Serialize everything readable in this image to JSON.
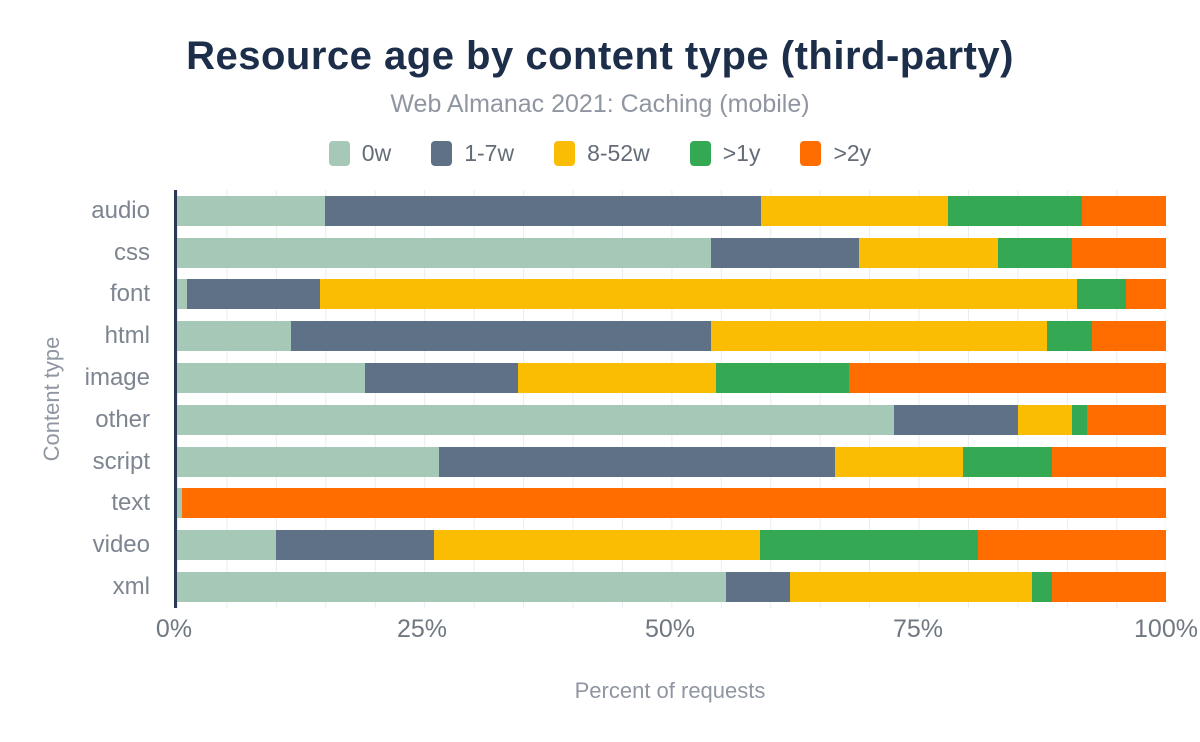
{
  "header": {
    "title": "Resource age by content type (third-party)",
    "subtitle": "Web Almanac 2021: Caching (mobile)"
  },
  "chart_data": {
    "type": "bar",
    "orientation": "horizontal",
    "stacked": true,
    "title": "Resource age by content type (third-party)",
    "subtitle": "Web Almanac 2021: Caching (mobile)",
    "xlabel": "Percent of requests",
    "ylabel": "Content type",
    "xlim": [
      0,
      100
    ],
    "x_ticks": [
      "0%",
      "25%",
      "50%",
      "75%",
      "100%"
    ],
    "x_tick_positions": [
      0,
      25,
      50,
      75,
      100
    ],
    "gridline_step_percent": 5,
    "grid": true,
    "legend_position": "top",
    "categories": [
      "audio",
      "css",
      "font",
      "html",
      "image",
      "other",
      "script",
      "text",
      "video",
      "xml"
    ],
    "series": [
      {
        "name": "0w",
        "color": "#a5c8b7",
        "values": [
          15,
          54,
          1,
          11.5,
          19,
          72.5,
          26.5,
          0.5,
          10,
          55.5
        ]
      },
      {
        "name": "1-7w",
        "color": "#5f7186",
        "values": [
          44,
          15,
          13.5,
          42.5,
          15.5,
          12.5,
          40,
          0,
          16,
          6.5
        ]
      },
      {
        "name": "8-52w",
        "color": "#fbbc04",
        "values": [
          19,
          14,
          76.5,
          34,
          20,
          5.5,
          13,
          0,
          33,
          24.5
        ]
      },
      {
        "name": ">1y",
        "color": "#34a853",
        "values": [
          13.5,
          7.5,
          5,
          4.5,
          13.5,
          1.5,
          9,
          0,
          22,
          2
        ]
      },
      {
        "name": ">2y",
        "color": "#ff6d00",
        "values": [
          8.5,
          9.5,
          4,
          7.5,
          32,
          8,
          11.5,
          99.5,
          19,
          11.5
        ]
      }
    ]
  },
  "colors": {
    "title": "#1c2e4a",
    "subtitle": "#8f96a1",
    "axis_line": "#2a3a55",
    "tick_label": "#6f7780",
    "gridline": "#e9edf1",
    "background": "#ffffff"
  }
}
